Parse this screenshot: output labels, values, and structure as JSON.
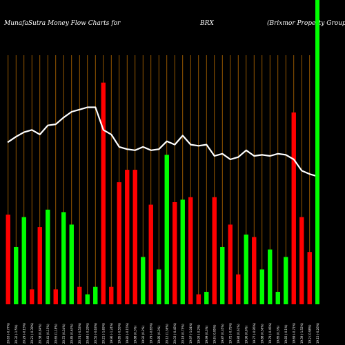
{
  "header": {
    "left": "MunafaSutra  Money Flow  Charts for",
    "symbol": "BRX",
    "company": "(Brixmor Property Group Inc.) M"
  },
  "colors": {
    "background": "#000000",
    "up_bar": "#00ff00",
    "down_bar": "#ff0000",
    "grid_line": "#b86b00",
    "price_line": "#ffffff",
    "latest_marker": "#00ff00"
  },
  "chart_data": {
    "type": "bar",
    "title": "MunafaSutra Money Flow Charts for BRX (Brixmor Property Group Inc.)",
    "xlabel": "",
    "ylabel": "",
    "ylim": [
      0,
      100
    ],
    "grid": true,
    "x_labels": [
      "20.63 (-0.77%)",
      "20.32 (-1.5%)",
      "20.29 (-0.15%)",
      "20.21 (-0.39%)",
      "20.38 (0.84%)",
      "20.41 (0.15%)",
      "20.65 (1.18%)",
      "20.72 (0.34%)",
      "20.85 (0.63%)",
      "20.74 (-0.53%)",
      "20.68 (-0.29%)",
      "20.55 (-0.63%)",
      "20.21 (-1.65%)",
      "19.96 (-1.24%)",
      "19.85 (-0.55%)",
      "19.82 (-0.15%)",
      "19.88 (0.3%)",
      "19.92 (0.2%)",
      "19.79 (-0.65%)",
      "19.85 (0.3%)",
      "20.12 (1.36%)",
      "20.03 (-0.45%)",
      "20.18 (0.75%)",
      "19.97 (-1.04%)",
      "19.93 (-0.2%)",
      "19.99 (0.3%)",
      "19.8 (-0.95%)",
      "19.87 (0.35%)",
      "19.72 (-0.75%)",
      "19.84 (0.61%)",
      "19.96 (0.6%)",
      "19.77 (-0.95%)",
      "19.88 (0.56%)",
      "19.79 (-0.45%)",
      "19.85 (0.3%)",
      "19.83 (-0.1%)",
      "19.69 (-0.71%)",
      "19.39 (-1.52%)",
      "19.2 (-0.98%)",
      "19.15 (-0.26%)"
    ],
    "series": [
      {
        "role": "money flow bars",
        "values": [
          36,
          23,
          35,
          6,
          31,
          38,
          6,
          37,
          32,
          7,
          4,
          7,
          89,
          7,
          49,
          54,
          54,
          19,
          40,
          14,
          60,
          41,
          42,
          43,
          4,
          5,
          43,
          23,
          32,
          12,
          28,
          27,
          14,
          22,
          5,
          19,
          77,
          35,
          21,
          0
        ],
        "directions": [
          "down",
          "up",
          "up",
          "down",
          "down",
          "up",
          "down",
          "up",
          "up",
          "down",
          "up",
          "up",
          "down",
          "down",
          "down",
          "down",
          "down",
          "up",
          "down",
          "up",
          "up",
          "down",
          "up",
          "down",
          "down",
          "up",
          "down",
          "up",
          "down",
          "down",
          "up",
          "down",
          "up",
          "up",
          "up",
          "up",
          "down",
          "down",
          "down",
          "up"
        ]
      },
      {
        "role": "price line",
        "values": [
          20.63,
          20.68,
          20.72,
          20.74,
          20.7,
          20.78,
          20.79,
          20.85,
          20.9,
          20.92,
          20.94,
          20.94,
          20.74,
          20.7,
          20.59,
          20.57,
          20.56,
          20.59,
          20.56,
          20.57,
          20.64,
          20.61,
          20.69,
          20.61,
          20.6,
          20.61,
          20.51,
          20.53,
          20.48,
          20.5,
          20.56,
          20.51,
          20.52,
          20.51,
          20.53,
          20.52,
          20.48,
          20.38,
          20.35,
          20.33
        ],
        "range": [
          19.2,
          21.4
        ]
      }
    ]
  }
}
